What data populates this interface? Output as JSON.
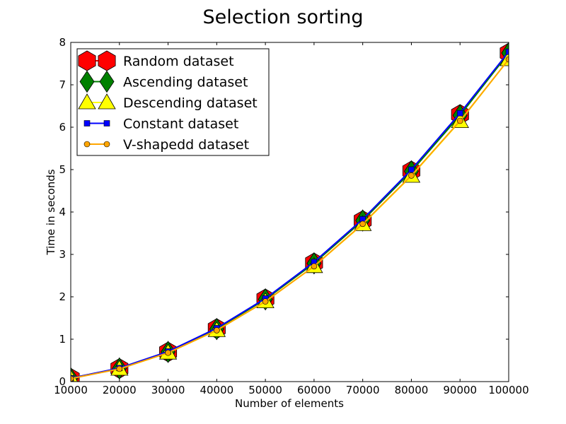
{
  "chart_data": {
    "type": "line",
    "title": "Selection sorting",
    "xlabel": "Number of elements",
    "ylabel": "Time in seconds",
    "xlim": [
      10000,
      100000
    ],
    "ylim": [
      0,
      8
    ],
    "x": [
      10000,
      20000,
      30000,
      40000,
      50000,
      60000,
      70000,
      80000,
      90000,
      100000
    ],
    "xticks": [
      "10000",
      "20000",
      "30000",
      "40000",
      "50000",
      "60000",
      "70000",
      "80000",
      "90000",
      "100000"
    ],
    "yticks": [
      "0",
      "1",
      "2",
      "3",
      "4",
      "5",
      "6",
      "7",
      "8"
    ],
    "legend_position": "top-left",
    "grid": false,
    "series": [
      {
        "name": "Random dataset",
        "color": "#ff0000",
        "marker": "hexagon",
        "values": [
          0.08,
          0.31,
          0.7,
          1.25,
          1.95,
          2.8,
          3.8,
          4.97,
          6.3,
          7.75
        ]
      },
      {
        "name": "Ascending dataset",
        "color": "#008000",
        "marker": "diamond",
        "values": [
          0.08,
          0.31,
          0.7,
          1.24,
          1.94,
          2.79,
          3.8,
          4.96,
          6.28,
          7.75
        ]
      },
      {
        "name": "Descending dataset",
        "color": "#ffff00",
        "marker": "triangle",
        "values": [
          0.08,
          0.3,
          0.68,
          1.21,
          1.89,
          2.72,
          3.71,
          4.85,
          6.14,
          7.6
        ]
      },
      {
        "name": "Constant dataset",
        "color": "#0000ff",
        "marker": "square",
        "values": [
          0.08,
          0.32,
          0.71,
          1.26,
          1.96,
          2.82,
          3.83,
          5.0,
          6.33,
          7.78
        ]
      },
      {
        "name": "V-shapedd dataset",
        "color": "#ffa500",
        "marker": "circle",
        "values": [
          0.07,
          0.3,
          0.68,
          1.21,
          1.89,
          2.72,
          3.72,
          4.86,
          6.15,
          7.6
        ]
      }
    ]
  }
}
